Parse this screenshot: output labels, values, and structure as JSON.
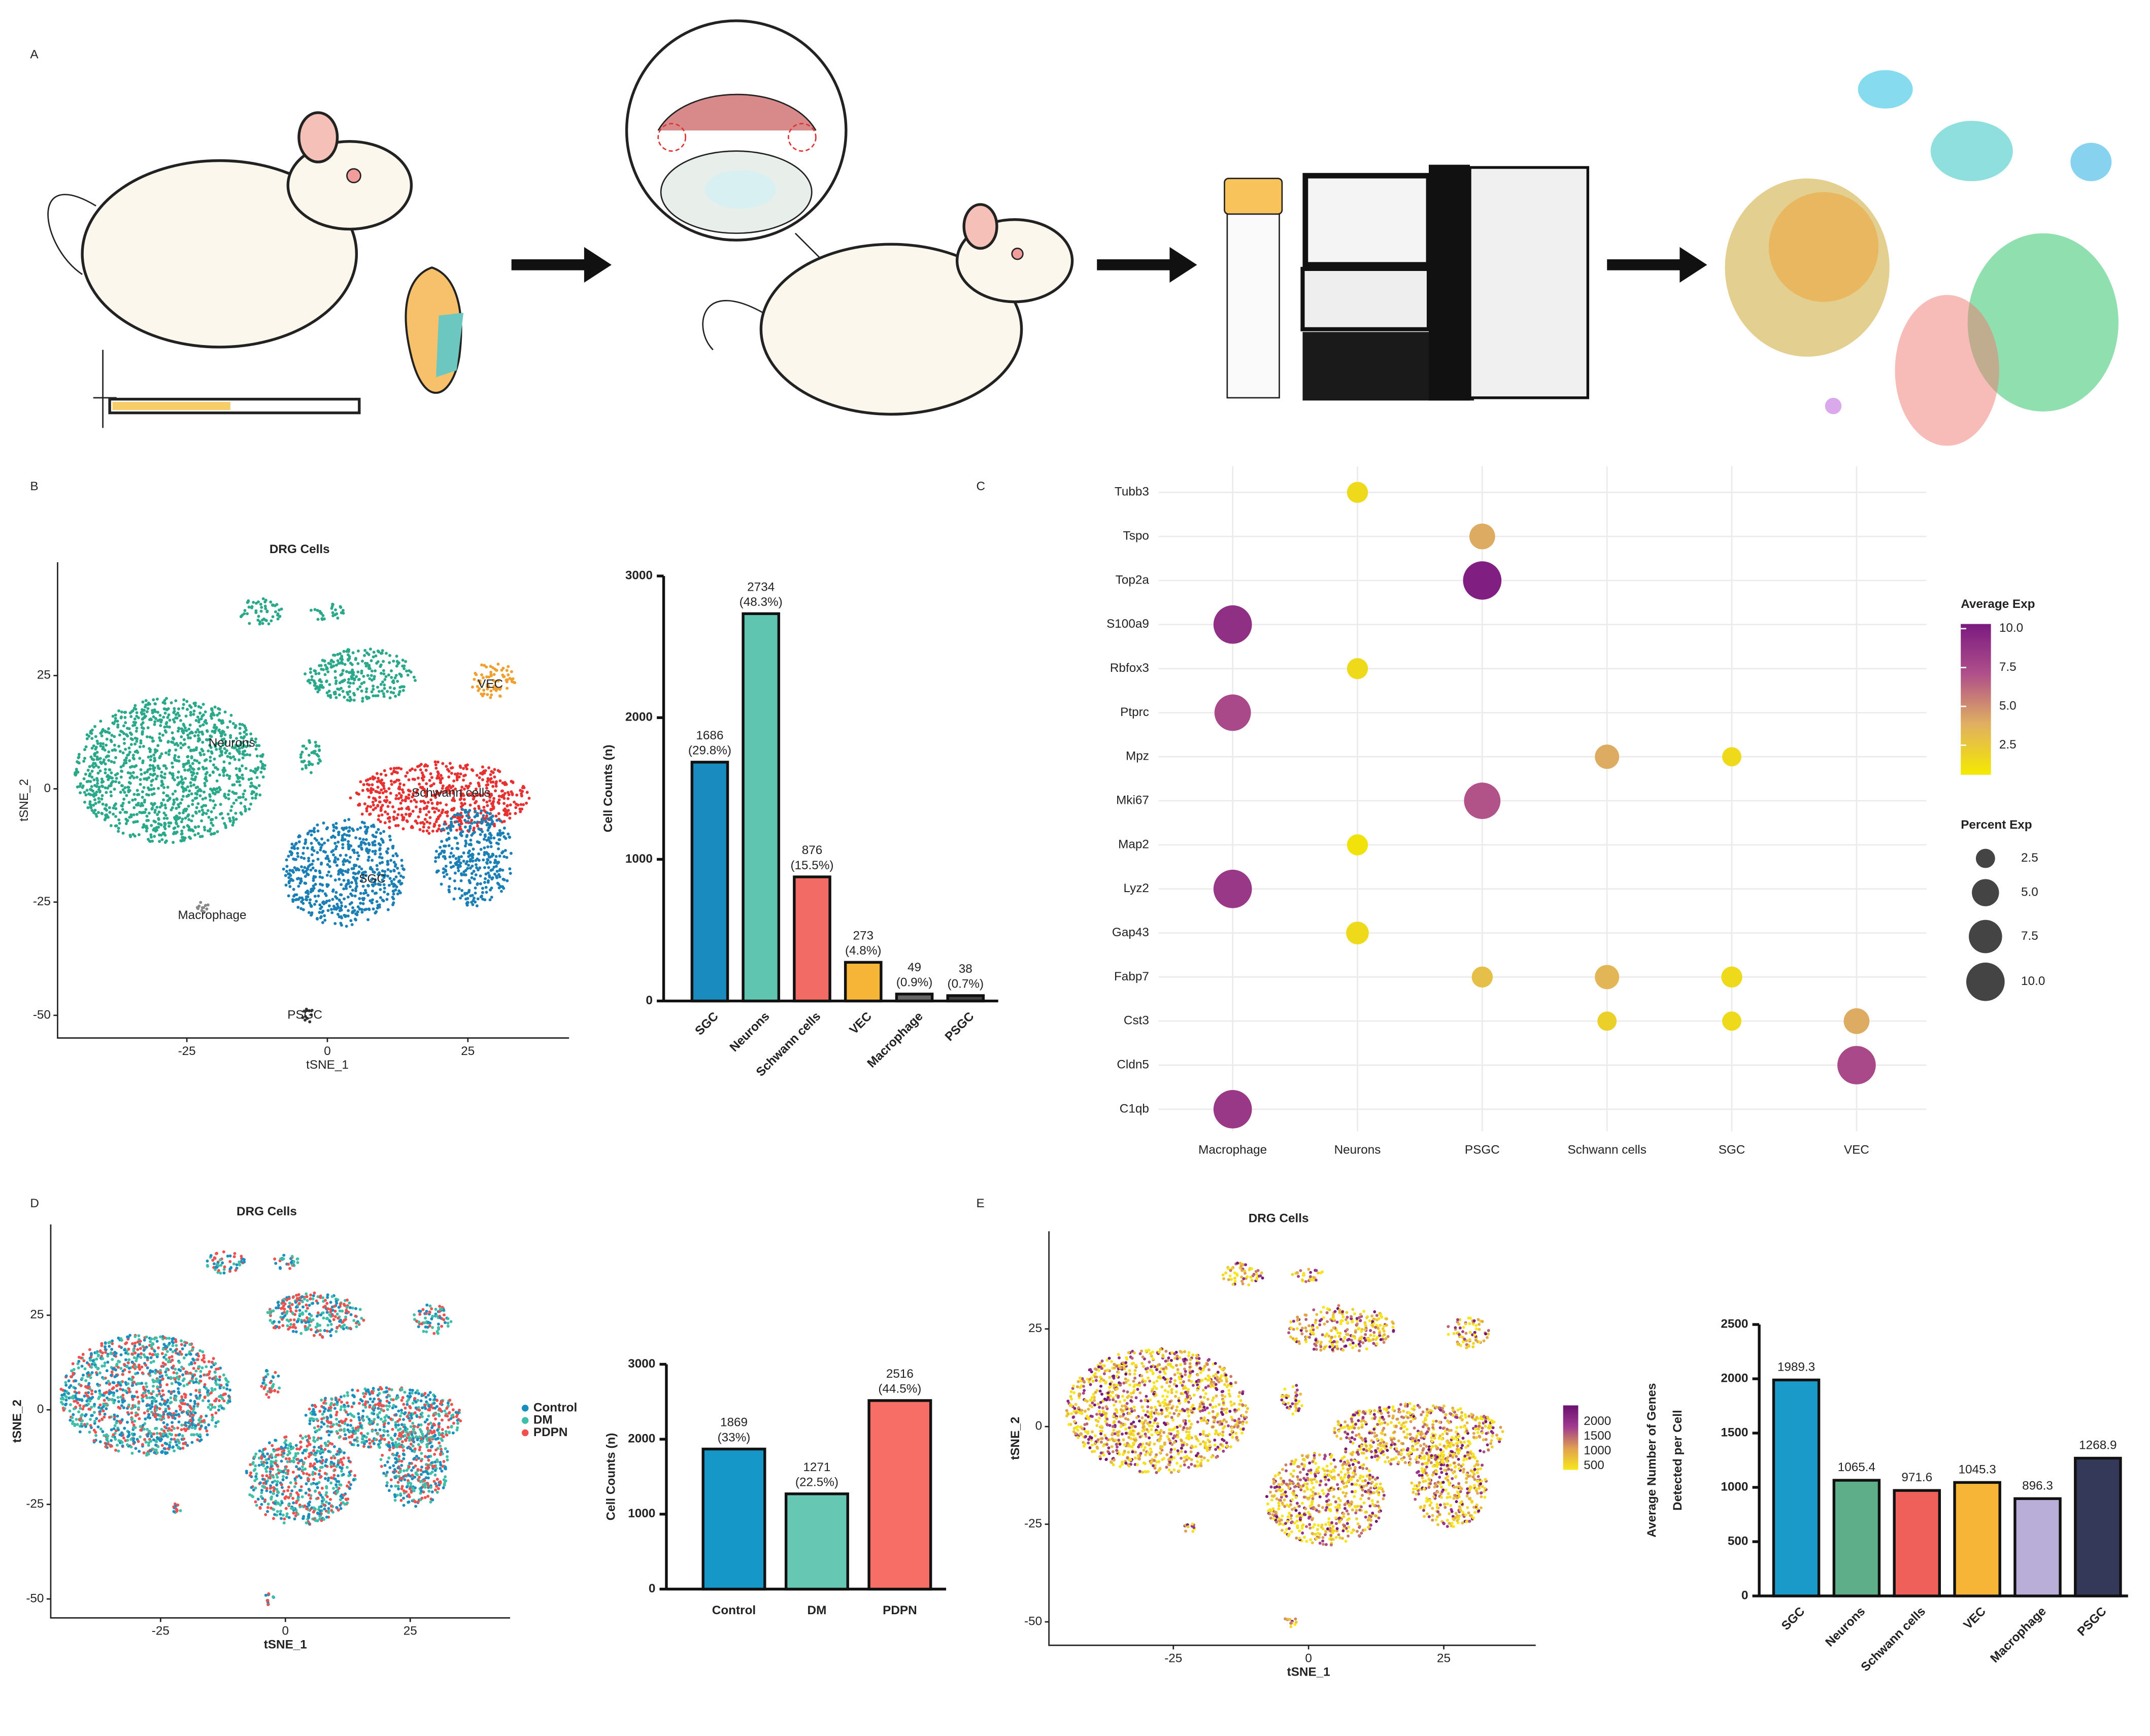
{
  "panel_labels": [
    "A",
    "B",
    "C",
    "D",
    "E"
  ],
  "chart_data": [
    {
      "type": "tsne",
      "title": "DRG Cells",
      "xlabel": "tSNE_1",
      "ylabel": "tSNE_2",
      "xlim": [
        -48,
        43
      ],
      "ylim": [
        -55,
        50
      ],
      "xticks": [
        -25,
        0,
        25
      ],
      "yticks": [
        -50,
        -25,
        0,
        25
      ],
      "clusters": [
        {
          "label": "Neurons",
          "x": -17,
          "y": 10,
          "color": "#2aa88a"
        },
        {
          "label": "VEC",
          "x": 29,
          "y": 23,
          "color": "#f0a030"
        },
        {
          "label": "Schwann cells",
          "x": 22,
          "y": -1,
          "color": "#e83030"
        },
        {
          "label": "SGC",
          "x": 8,
          "y": -20,
          "color": "#1a7fb5"
        },
        {
          "label": "Macrophage",
          "x": -20.5,
          "y": -28,
          "color": "#888888"
        },
        {
          "label": "PSGC",
          "x": -4,
          "y": -50,
          "color": "#333333"
        }
      ]
    },
    {
      "type": "bar",
      "ylabel": "Cell Counts (n)",
      "categories": [
        "SGC",
        "Neurons",
        "Schwann cells",
        "VEC",
        "Macrophage",
        "PSGC"
      ],
      "values": [
        1686,
        2734,
        876,
        273,
        49,
        38
      ],
      "percent_labels": [
        "(29.8%)",
        "(48.3%)",
        "(15.5%)",
        "(4.8%)",
        "(0.9%)",
        "(0.7%)"
      ],
      "colors": [
        "#1a8bbf",
        "#5fc4b0",
        "#f26b64",
        "#f7b538",
        "#666666",
        "#444444"
      ],
      "ylim": [
        0,
        3000
      ],
      "yticks": [
        0,
        1000,
        2000,
        3000
      ]
    },
    {
      "type": "dotplot",
      "genes": [
        "Tubb3",
        "Tspo",
        "Top2a",
        "S100a9",
        "Rbfox3",
        "Ptprc",
        "Mpz",
        "Mki67",
        "Map2",
        "Lyz2",
        "Gap43",
        "Fabp7",
        "Cst3",
        "Cldn5",
        "C1qb"
      ],
      "cell_types": [
        "Macrophage",
        "Neurons",
        "PSGC",
        "Schwann cells",
        "SGC",
        "VEC"
      ],
      "points": [
        {
          "gene": "Tubb3",
          "cell_type": "Neurons",
          "avg_exp": 1.5,
          "pct_exp": 3
        },
        {
          "gene": "Tspo",
          "cell_type": "PSGC",
          "avg_exp": 4,
          "pct_exp": 4.5
        },
        {
          "gene": "Top2a",
          "cell_type": "PSGC",
          "avg_exp": 10,
          "pct_exp": 10
        },
        {
          "gene": "S100a9",
          "cell_type": "Macrophage",
          "avg_exp": 9,
          "pct_exp": 10
        },
        {
          "gene": "Rbfox3",
          "cell_type": "Neurons",
          "avg_exp": 1.5,
          "pct_exp": 3
        },
        {
          "gene": "Ptprc",
          "cell_type": "Macrophage",
          "avg_exp": 7.5,
          "pct_exp": 9
        },
        {
          "gene": "Mpz",
          "cell_type": "Schwann cells",
          "avg_exp": 4,
          "pct_exp": 4
        },
        {
          "gene": "Mpz",
          "cell_type": "SGC",
          "avg_exp": 1.5,
          "pct_exp": 2.5
        },
        {
          "gene": "Mki67",
          "cell_type": "PSGC",
          "avg_exp": 7,
          "pct_exp": 9
        },
        {
          "gene": "Map2",
          "cell_type": "Neurons",
          "avg_exp": 1,
          "pct_exp": 3
        },
        {
          "gene": "Lyz2",
          "cell_type": "Macrophage",
          "avg_exp": 8.5,
          "pct_exp": 10
        },
        {
          "gene": "Gap43",
          "cell_type": "Neurons",
          "avg_exp": 1.5,
          "pct_exp": 3.5
        },
        {
          "gene": "Fabp7",
          "cell_type": "PSGC",
          "avg_exp": 3,
          "pct_exp": 3
        },
        {
          "gene": "Fabp7",
          "cell_type": "Schwann cells",
          "avg_exp": 3.5,
          "pct_exp": 4
        },
        {
          "gene": "Fabp7",
          "cell_type": "SGC",
          "avg_exp": 1.5,
          "pct_exp": 3
        },
        {
          "gene": "Cst3",
          "cell_type": "Schwann cells",
          "avg_exp": 2,
          "pct_exp": 2.5
        },
        {
          "gene": "Cst3",
          "cell_type": "SGC",
          "avg_exp": 1.5,
          "pct_exp": 2.5
        },
        {
          "gene": "Cst3",
          "cell_type": "VEC",
          "avg_exp": 4,
          "pct_exp": 4.5
        },
        {
          "gene": "Cldn5",
          "cell_type": "VEC",
          "avg_exp": 7.5,
          "pct_exp": 10
        },
        {
          "gene": "C1qb",
          "cell_type": "Macrophage",
          "avg_exp": 8.5,
          "pct_exp": 10
        }
      ],
      "color_legend": {
        "title": "Average Exp",
        "clim": [
          0.6,
          10.3
        ],
        "colors": [
          "#f5e900",
          "#e0b060",
          "#b0508a",
          "#7b1a80"
        ],
        "ticks": [
          2.5,
          {
            "value": 5,
            "label": "5.0"
          },
          7.5,
          {
            "value": 10,
            "label": "10.0"
          }
        ]
      },
      "size_legend": {
        "title": "Percent Exp",
        "values": [
          2.5,
          {
            "value": 5,
            "label": "5.0"
          },
          7.5,
          {
            "value": 10,
            "label": "10.0"
          }
        ]
      }
    },
    {
      "type": "tsne",
      "title": "DRG Cells",
      "xlabel": "tSNE_1",
      "ylabel": "tSNE_2",
      "xlim": [
        -47,
        45
      ],
      "ylim": [
        -55,
        49
      ],
      "xticks": [
        -25,
        0,
        25
      ],
      "yticks": [
        -50,
        -25,
        0,
        25
      ],
      "series": [
        {
          "name": "Control",
          "color": "#1a8fbf"
        },
        {
          "name": "DM",
          "color": "#3dbfa8"
        },
        {
          "name": "PDPN",
          "color": "#f0504e"
        }
      ],
      "legend": "right"
    },
    {
      "type": "bar",
      "ylabel": "Cell Counts (n)",
      "categories": [
        "Control",
        "DM",
        "PDPN"
      ],
      "values": [
        1869,
        1271,
        2516
      ],
      "percent_labels": [
        "(33%)",
        "(22.5%)",
        "(44.5%)"
      ],
      "colors": [
        "#1598c8",
        "#66c7b2",
        "#f76e66"
      ],
      "ylim": [
        0,
        3000
      ],
      "yticks": [
        0,
        1000,
        2000,
        3000
      ]
    },
    {
      "type": "tsne",
      "title": "DRG Cells",
      "xlabel": "tSNE_1",
      "ylabel": "tSNE_2",
      "xlim": [
        -48,
        42
      ],
      "ylim": [
        -56,
        50
      ],
      "xticks": [
        -25,
        0,
        25
      ],
      "yticks": [
        -50,
        -25,
        0,
        25
      ],
      "colorbar": {
        "clim": [
          360,
          2560
        ],
        "ticks": [
          500,
          1000,
          1500,
          2000
        ],
        "colors": [
          "#f7e81a",
          "#e0a050",
          "#a03a90",
          "#6a1070"
        ]
      }
    },
    {
      "type": "bar",
      "ylabel": [
        "Average Number of Genes",
        "Detected per Cell"
      ],
      "categories": [
        "SGC",
        "Neurons",
        "Schwann cells",
        "VEC",
        "Macrophage",
        "PSGC"
      ],
      "values": [
        1989.3,
        1065.4,
        971.6,
        1045.3,
        896.3,
        1268.9
      ],
      "colors": [
        "#1a9ac9",
        "#5fae8a",
        "#f0605a",
        "#f7b538",
        "#b9aed8",
        "#34395a"
      ],
      "ylim": [
        0,
        2500
      ],
      "yticks": [
        0,
        500,
        1000,
        1500,
        2000,
        2500
      ]
    }
  ]
}
